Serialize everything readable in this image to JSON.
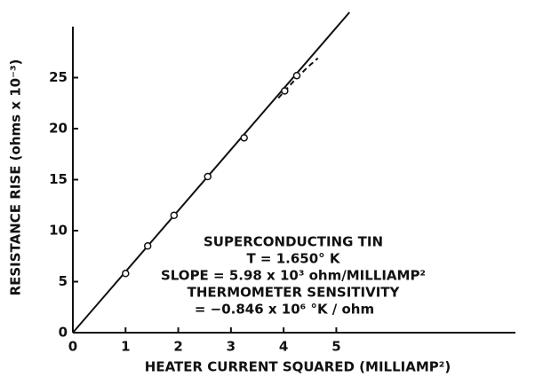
{
  "chart_data": {
    "type": "scatter",
    "xlabel": "HEATER CURRENT SQUARED (MILLIAMP²)",
    "ylabel": "RESISTANCE RISE (ohms x 10⁻³)",
    "annotations": [
      "SUPERCONDUCTING TIN",
      "T = 1.650° K",
      "SLOPE = 5.98 x 10³ ohm/MILLIAMP²",
      "THERMOMETER SENSITIVITY",
      "= −0.846 x 10⁶ °K / ohm"
    ],
    "x": [
      1,
      1.42,
      1.92,
      2.56,
      3.25,
      4.02,
      4.25
    ],
    "values": [
      5.8,
      8.5,
      11.5,
      15.3,
      19.1,
      23.7,
      25.2
    ],
    "color": "#111111",
    "fit_line": {
      "x": [
        0,
        5.25
      ],
      "values": [
        0,
        31.4
      ]
    },
    "dashed_curve": {
      "x": [
        3.9,
        4.2,
        4.45,
        4.65
      ],
      "values": [
        23.0,
        24.7,
        26.0,
        26.9
      ]
    },
    "xlim": [
      0,
      8.4
    ],
    "ylim": [
      0,
      30
    ],
    "xticks": [
      0,
      1,
      2,
      3,
      4,
      5
    ],
    "yticks": [
      0,
      5,
      10,
      15,
      20,
      25
    ]
  }
}
